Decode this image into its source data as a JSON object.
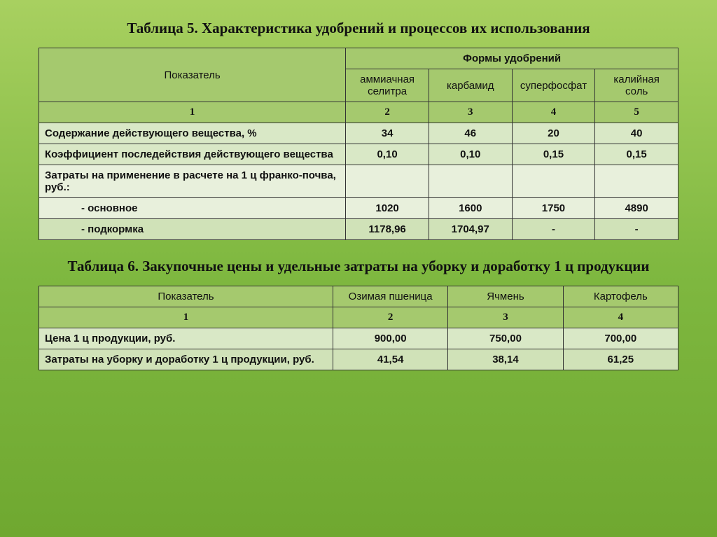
{
  "table5": {
    "title": "Таблица 5. Характеристика удобрений и процессов их использования",
    "header_indicator": "Показатель",
    "header_forms": "Формы удобрений",
    "columns": [
      "аммиачная селитра",
      "карбамид",
      "суперфосфат",
      "калийная соль"
    ],
    "col_nums": [
      "1",
      "2",
      "3",
      "4",
      "5"
    ],
    "rows": [
      {
        "label": "Содержание действующего вещества, %",
        "vals": [
          "34",
          "46",
          "20",
          "40"
        ],
        "shade": "data-row"
      },
      {
        "label": "Коэффициент последействия действующего вещества",
        "vals": [
          "0,10",
          "0,10",
          "0,15",
          "0,15"
        ],
        "shade": "data-row"
      },
      {
        "label": "Затраты на применение в расчете на 1 ц франко-почва, руб.:",
        "vals": [
          "",
          "",
          "",
          ""
        ],
        "shade": "data-row2"
      },
      {
        "label": "- основное",
        "vals": [
          "1020",
          "1600",
          "1750",
          "4890"
        ],
        "shade": "data-row2",
        "indent": true
      },
      {
        "label": "- подкормка",
        "vals": [
          "1178,96",
          "1704,97",
          "-",
          "-"
        ],
        "shade": "data-row3",
        "indent": true
      }
    ]
  },
  "table6": {
    "title": "Таблица 6. Закупочные цены и удельные затраты на уборку и доработку 1 ц продукции",
    "header_indicator": "Показатель",
    "columns": [
      "Озимая пшеница",
      "Ячмень",
      "Картофель"
    ],
    "col_nums": [
      "1",
      "2",
      "3",
      "4"
    ],
    "rows": [
      {
        "label": "Цена 1 ц продукции, руб.",
        "vals": [
          "900,00",
          "750,00",
          "700,00"
        ],
        "shade": "data-row"
      },
      {
        "label": "Затраты на уборку и доработку 1 ц продукции, руб.",
        "vals": [
          "41,54",
          "38,14",
          "61,25"
        ],
        "shade": "data-row3"
      }
    ]
  },
  "style": {
    "header_bg": "#a5c96e",
    "data_bg1": "#d9e8c6",
    "data_bg2": "#e8f0dc",
    "data_bg3": "#d0e2b8",
    "border_color": "#333",
    "title_fontsize": 21,
    "cell_fontsize": 15,
    "page_bg_gradient": [
      "#a8d060",
      "#7fb840",
      "#6fa830"
    ]
  }
}
